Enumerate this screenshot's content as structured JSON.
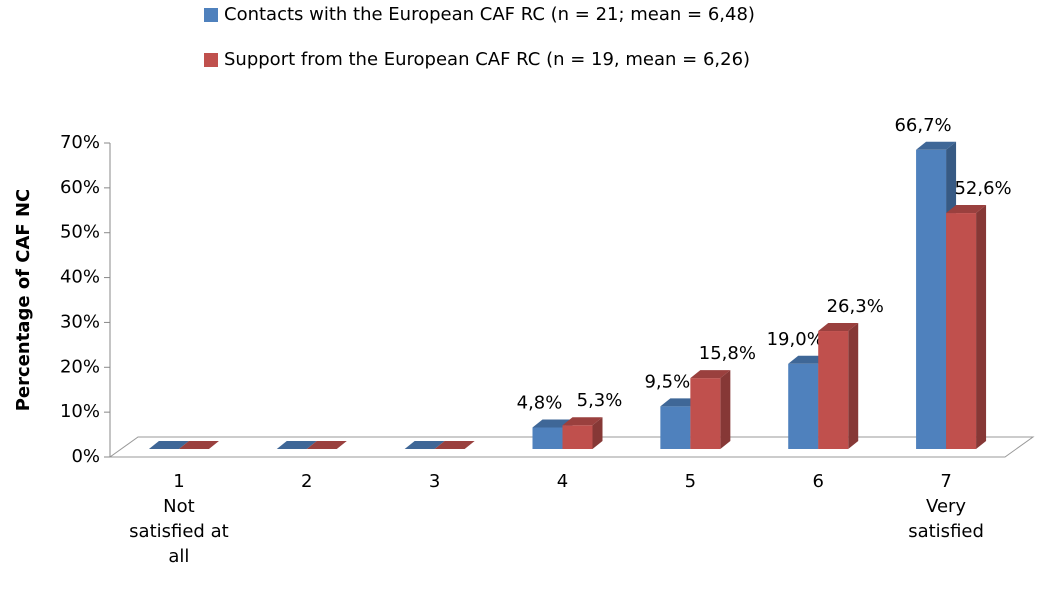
{
  "chart_data": {
    "type": "bar3d",
    "ylabel": "Percentage of CAF NC",
    "categories": [
      "1\nNot satisfied at all",
      "2",
      "3",
      "4",
      "5",
      "6",
      "7\nVery satisfied"
    ],
    "series": [
      {
        "name": "Contacts with the European CAF RC (n = 21; mean = 6,48)",
        "color": "#4f81bd",
        "values": [
          0,
          0,
          0,
          4.8,
          9.5,
          19.0,
          66.7
        ],
        "value_labels": [
          null,
          null,
          null,
          "4,8%",
          "9,5%",
          "19,0%",
          "66,7%"
        ]
      },
      {
        "name": "Support from the European CAF RC (n = 19, mean = 6,26)",
        "color": "#c0504d",
        "values": [
          0,
          0,
          0,
          5.3,
          15.8,
          26.3,
          52.6
        ],
        "value_labels": [
          null,
          null,
          null,
          "5,3%",
          "15,8%",
          "26,3%",
          "52,6%"
        ]
      }
    ],
    "ylim": [
      0,
      70
    ],
    "yticks": [
      {
        "value": 0,
        "label": "0%"
      },
      {
        "value": 10,
        "label": "10%"
      },
      {
        "value": 20,
        "label": "20%"
      },
      {
        "value": 30,
        "label": "30%"
      },
      {
        "value": 40,
        "label": "40%"
      },
      {
        "value": 50,
        "label": "50%"
      },
      {
        "value": 60,
        "label": "60%"
      },
      {
        "value": 70,
        "label": "70%"
      }
    ]
  }
}
